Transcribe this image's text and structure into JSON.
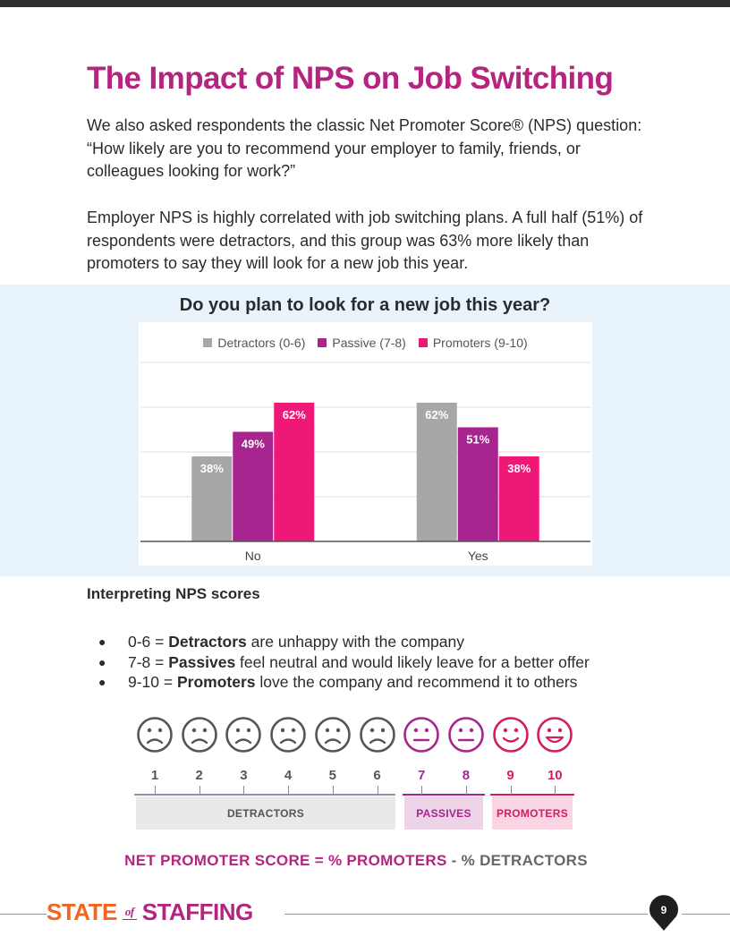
{
  "title": "The Impact of NPS on Job Switching",
  "paragraphs": [
    "We also asked respondents the classic Net Promoter Score® (NPS) question: “How likely are you to recommend your employer to family, friends, or colleagues looking for work?”",
    "Employer NPS is highly correlated with job switching plans. A full half (51%) of respondents were detractors, and this group was 63% more likely than promoters to say they will look for a new job this year."
  ],
  "chart_data": {
    "type": "bar",
    "title": "Do you plan to look for a new job this year?",
    "categories": [
      "No",
      "Yes"
    ],
    "series": [
      {
        "name": "Detractors (0-6)",
        "values": [
          38,
          62
        ],
        "labels": [
          "38%",
          "62%"
        ],
        "color": "#a7a7a7"
      },
      {
        "name": "Passive (7-8)",
        "values": [
          49,
          51
        ],
        "labels": [
          "49%",
          "51%"
        ],
        "color": "#a8248f"
      },
      {
        "name": "Promoters (9-10)",
        "values": [
          62,
          38
        ],
        "labels": [
          "62%",
          "38%"
        ],
        "color": "#ee1877"
      }
    ],
    "ylim": [
      0,
      80
    ],
    "grid": true,
    "legend": "top"
  },
  "interpreting": {
    "heading": "Interpreting NPS scores",
    "bullets": [
      {
        "range": "0-6 = ",
        "term": "Detractors",
        "rest": " are unhappy with the company"
      },
      {
        "range": "7-8 = ",
        "term": "Passives",
        "rest": " feel neutral and would likely leave for a better offer"
      },
      {
        "range": "9-10 = ",
        "term": "Promoters",
        "rest": " love the company and recommend it to others"
      }
    ]
  },
  "scale": {
    "numbers": [
      "1",
      "2",
      "3",
      "4",
      "5",
      "6",
      "7",
      "8",
      "9",
      "10"
    ],
    "faces": [
      "sad",
      "sad",
      "sad",
      "sad",
      "sad",
      "sad",
      "neutral",
      "neutral",
      "smile",
      "grin"
    ],
    "segments": {
      "detractors": "DETRACTORS",
      "passives": "PASSIVES",
      "promoters": "PROMOTERS"
    },
    "colors": {
      "detractor": "#555555",
      "passive": "#a8248f",
      "promoter": "#d81b60"
    }
  },
  "formula": {
    "part1": "NET PROMOTER SCORE = % PROMOTERS",
    "part2": " - % DETRACTORS"
  },
  "footer": {
    "logo_left": "STATE",
    "logo_of": "of",
    "logo_right": "STAFFING",
    "page": "9"
  }
}
